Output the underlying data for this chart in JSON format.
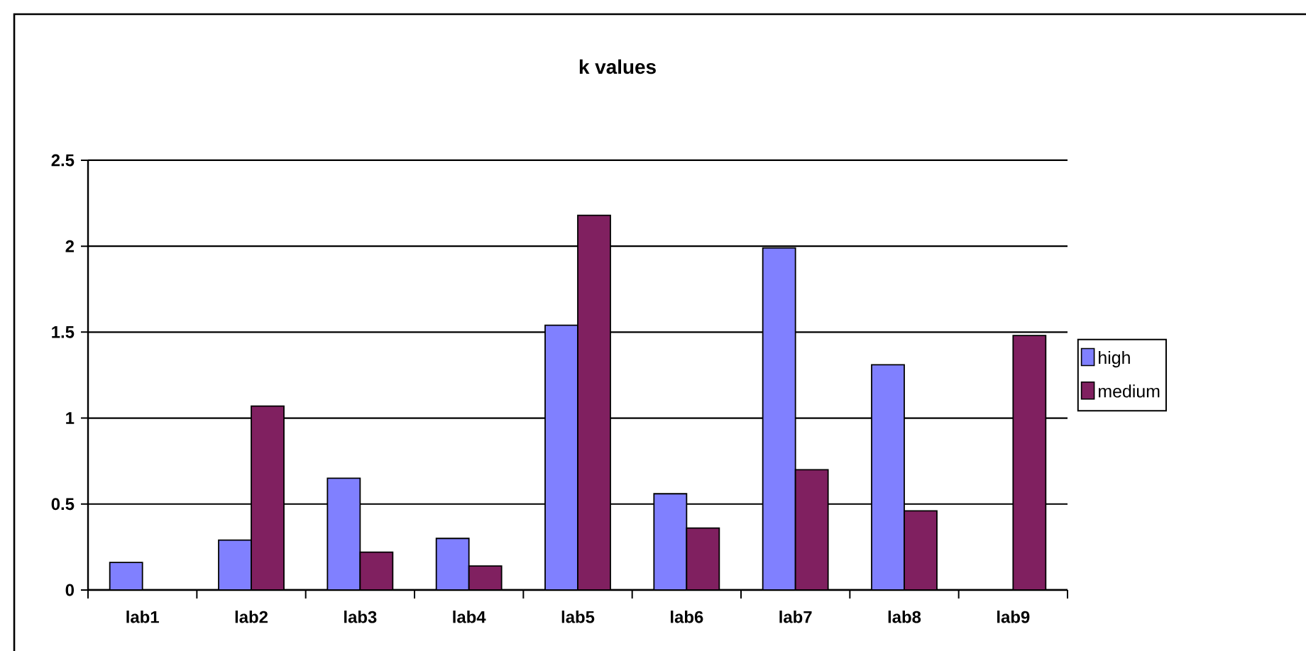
{
  "chart_data": {
    "type": "bar",
    "title": "k values",
    "categories": [
      "lab1",
      "lab2",
      "lab3",
      "lab4",
      "lab5",
      "lab6",
      "lab7",
      "lab8",
      "lab9"
    ],
    "series": [
      {
        "name": "high",
        "color": "#8080ff",
        "values": [
          0.16,
          0.29,
          0.65,
          0.3,
          1.54,
          0.56,
          1.99,
          1.31,
          null
        ]
      },
      {
        "name": "medium",
        "color": "#802060",
        "values": [
          null,
          1.07,
          0.22,
          0.14,
          2.18,
          0.36,
          0.7,
          0.46,
          1.48
        ]
      }
    ],
    "ylim": [
      0,
      2.5
    ],
    "yticks": [
      0,
      0.5,
      1,
      1.5,
      2,
      2.5
    ],
    "grid": "y",
    "legend": "right"
  }
}
